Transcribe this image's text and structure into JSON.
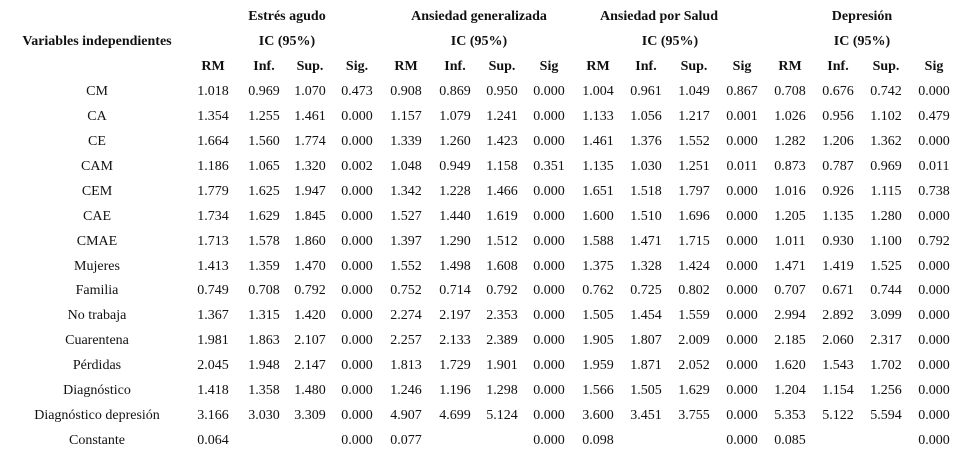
{
  "table": {
    "variables_label": "Variables independientes",
    "groups": [
      {
        "title": "Estrés agudo",
        "ci": "IC (95%)"
      },
      {
        "title": "Ansiedad generalizada",
        "ci": "IC (95%)"
      },
      {
        "title": "Ansiedad por Salud",
        "ci": "IC (95%)"
      },
      {
        "title": "Depresión",
        "ci": "IC (95%)"
      }
    ],
    "columns": [
      "RM",
      "Inf.",
      "Sup.",
      "Sig.",
      "RM",
      "Inf.",
      "Sup.",
      "Sig",
      "RM",
      "Inf.",
      "Sup.",
      "Sig",
      "RM",
      "Inf.",
      "Sup.",
      "Sig"
    ],
    "rows": [
      {
        "label": "CM",
        "values": [
          "1.018",
          "0.969",
          "1.070",
          "0.473",
          "0.908",
          "0.869",
          "0.950",
          "0.000",
          "1.004",
          "0.961",
          "1.049",
          "0.867",
          "0.708",
          "0.676",
          "0.742",
          "0.000"
        ]
      },
      {
        "label": "CA",
        "values": [
          "1.354",
          "1.255",
          "1.461",
          "0.000",
          "1.157",
          "1.079",
          "1.241",
          "0.000",
          "1.133",
          "1.056",
          "1.217",
          "0.001",
          "1.026",
          "0.956",
          "1.102",
          "0.479"
        ]
      },
      {
        "label": "CE",
        "values": [
          "1.664",
          "1.560",
          "1.774",
          "0.000",
          "1.339",
          "1.260",
          "1.423",
          "0.000",
          "1.461",
          "1.376",
          "1.552",
          "0.000",
          "1.282",
          "1.206",
          "1.362",
          "0.000"
        ]
      },
      {
        "label": "CAM",
        "values": [
          "1.186",
          "1.065",
          "1.320",
          "0.002",
          "1.048",
          "0.949",
          "1.158",
          "0.351",
          "1.135",
          "1.030",
          "1.251",
          "0.011",
          "0.873",
          "0.787",
          "0.969",
          "0.011"
        ]
      },
      {
        "label": "CEM",
        "values": [
          "1.779",
          "1.625",
          "1.947",
          "0.000",
          "1.342",
          "1.228",
          "1.466",
          "0.000",
          "1.651",
          "1.518",
          "1.797",
          "0.000",
          "1.016",
          "0.926",
          "1.115",
          "0.738"
        ]
      },
      {
        "label": "CAE",
        "values": [
          "1.734",
          "1.629",
          "1.845",
          "0.000",
          "1.527",
          "1.440",
          "1.619",
          "0.000",
          "1.600",
          "1.510",
          "1.696",
          "0.000",
          "1.205",
          "1.135",
          "1.280",
          "0.000"
        ]
      },
      {
        "label": "CMAE",
        "values": [
          "1.713",
          "1.578",
          "1.860",
          "0.000",
          "1.397",
          "1.290",
          "1.512",
          "0.000",
          "1.588",
          "1.471",
          "1.715",
          "0.000",
          "1.011",
          "0.930",
          "1.100",
          "0.792"
        ]
      },
      {
        "label": "Mujeres",
        "values": [
          "1.413",
          "1.359",
          "1.470",
          "0.000",
          "1.552",
          "1.498",
          "1.608",
          "0.000",
          "1.375",
          "1.328",
          "1.424",
          "0.000",
          "1.471",
          "1.419",
          "1.525",
          "0.000"
        ]
      },
      {
        "label": "Familia",
        "values": [
          "0.749",
          "0.708",
          "0.792",
          "0.000",
          "0.752",
          "0.714",
          "0.792",
          "0.000",
          "0.762",
          "0.725",
          "0.802",
          "0.000",
          "0.707",
          "0.671",
          "0.744",
          "0.000"
        ]
      },
      {
        "label": "No trabaja",
        "values": [
          "1.367",
          "1.315",
          "1.420",
          "0.000",
          "2.274",
          "2.197",
          "2.353",
          "0.000",
          "1.505",
          "1.454",
          "1.559",
          "0.000",
          "2.994",
          "2.892",
          "3.099",
          "0.000"
        ]
      },
      {
        "label": "Cuarentena",
        "values": [
          "1.981",
          "1.863",
          "2.107",
          "0.000",
          "2.257",
          "2.133",
          "2.389",
          "0.000",
          "1.905",
          "1.807",
          "2.009",
          "0.000",
          "2.185",
          "2.060",
          "2.317",
          "0.000"
        ]
      },
      {
        "label": "Pérdidas",
        "values": [
          "2.045",
          "1.948",
          "2.147",
          "0.000",
          "1.813",
          "1.729",
          "1.901",
          "0.000",
          "1.959",
          "1.871",
          "2.052",
          "0.000",
          "1.620",
          "1.543",
          "1.702",
          "0.000"
        ]
      },
      {
        "label": "Diagnóstico",
        "values": [
          "1.418",
          "1.358",
          "1.480",
          "0.000",
          "1.246",
          "1.196",
          "1.298",
          "0.000",
          "1.566",
          "1.505",
          "1.629",
          "0.000",
          "1.204",
          "1.154",
          "1.256",
          "0.000"
        ]
      },
      {
        "label": "Diagnóstico depresión",
        "values": [
          "3.166",
          "3.030",
          "3.309",
          "0.000",
          "4.907",
          "4.699",
          "5.124",
          "0.000",
          "3.600",
          "3.451",
          "3.755",
          "0.000",
          "5.353",
          "5.122",
          "5.594",
          "0.000"
        ]
      },
      {
        "label": "Constante",
        "values": [
          "0.064",
          null,
          null,
          "0.000",
          "0.077",
          null,
          null,
          "0.000",
          "0.098",
          null,
          null,
          "0.000",
          "0.085",
          null,
          null,
          "0.000"
        ]
      }
    ]
  }
}
